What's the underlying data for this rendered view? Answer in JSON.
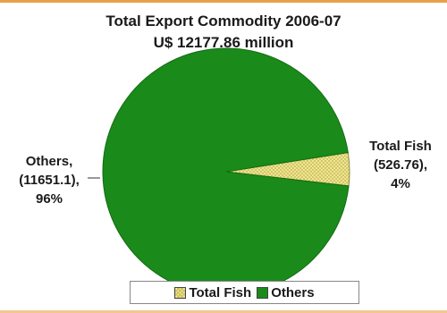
{
  "chart_data": {
    "type": "pie",
    "title": "Total Export Commodity 2006-07",
    "subtitle": "U$ 12177.86 million",
    "slices": [
      {
        "name": "Total Fish",
        "value": 526.76,
        "value_label": "(526.76),",
        "percent_label": "4%",
        "color": "#f3ec9a"
      },
      {
        "name": "Others",
        "value": 11651.1,
        "value_label": "(11651.1),",
        "percent_label": "96%",
        "color": "#1a8a1a"
      }
    ],
    "legend": {
      "position": "bottom",
      "entries": [
        "Total Fish",
        "Others"
      ]
    },
    "labels": {
      "others_name": "Others,",
      "fish_name": "Total Fish"
    }
  }
}
